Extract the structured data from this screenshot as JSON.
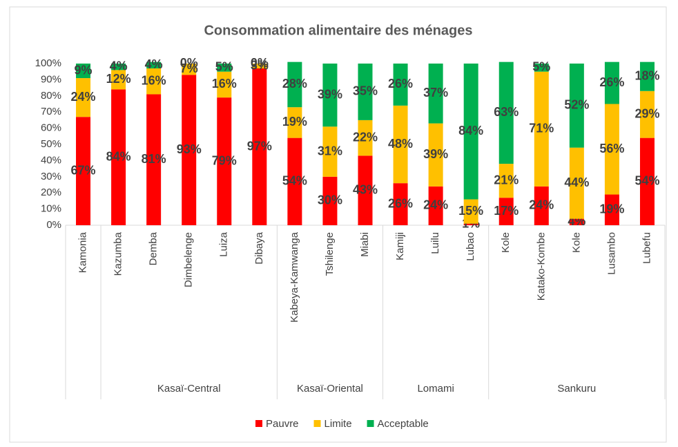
{
  "chart_data": {
    "type": "stacked_bar",
    "title": "Consommation alimentaire des ménages",
    "categories": [
      "Kamonia",
      "Kazumba",
      "Demba",
      "Dimbelenge",
      "Luiza",
      "Dibaya",
      "Kabeya-Kamwanga",
      "Tshilenge",
      "Miabi",
      "Kamiji",
      "Luilu",
      "Lubao",
      "Kole",
      "Katako-Kombe",
      "Kole",
      "Lusambo",
      "Lubefu"
    ],
    "category_groups": [
      null,
      "Kasaï-Central",
      "Kasaï-Central",
      "Kasaï-Central",
      "Kasaï-Central",
      "Kasaï-Central",
      "Kasaï-Oriental",
      "Kasaï-Oriental",
      "Kasaï-Oriental",
      "Lomami",
      "Lomami",
      "Lomami",
      "Sankuru",
      "Sankuru",
      "Sankuru",
      "Sankuru",
      "Sankuru"
    ],
    "series": [
      {
        "name": "Pauvre",
        "color": "#ff0000",
        "values": [
          67,
          84,
          81,
          93,
          79,
          97,
          54,
          30,
          43,
          26,
          24,
          1,
          17,
          24,
          4,
          19,
          54
        ],
        "value_labels": [
          "67%",
          "84%",
          "81%",
          "93%",
          "79%",
          "97%",
          "54%",
          "30%",
          "43%",
          "26%",
          "24%",
          "1%",
          "17%",
          "24%",
          "4%",
          "19%",
          "54%"
        ]
      },
      {
        "name": "Limite",
        "color": "#ffc000",
        "values": [
          24,
          12,
          16,
          7,
          16,
          3,
          19,
          31,
          22,
          48,
          39,
          15,
          21,
          71,
          44,
          56,
          29
        ],
        "value_labels": [
          "24%",
          "12%",
          "16%",
          "7%",
          "16%",
          "3%",
          "19%",
          "31%",
          "22%",
          "48%",
          "39%",
          "15%",
          "21%",
          "71%",
          "44%",
          "56%",
          "29%"
        ]
      },
      {
        "name": "Acceptable",
        "color": "#00b050",
        "values": [
          9,
          4,
          4,
          0,
          5,
          0,
          28,
          39,
          35,
          26,
          37,
          84,
          63,
          5,
          52,
          26,
          18
        ],
        "value_labels": [
          "9%",
          "4%",
          "4%",
          "0%",
          "5%",
          "0%",
          "28%",
          "39%",
          "35%",
          "26%",
          "37%",
          "84%",
          "63%",
          "5%",
          "52%",
          "26%",
          "18%"
        ]
      }
    ],
    "ylim": [
      0,
      100
    ],
    "yticks": [
      {
        "value": 0,
        "label": "0%"
      },
      {
        "value": 10,
        "label": "10%"
      },
      {
        "value": 20,
        "label": "20%"
      },
      {
        "value": 30,
        "label": "30%"
      },
      {
        "value": 40,
        "label": "40%"
      },
      {
        "value": 50,
        "label": "50%"
      },
      {
        "value": 60,
        "label": "60%"
      },
      {
        "value": 70,
        "label": "70%"
      },
      {
        "value": 80,
        "label": "80%"
      },
      {
        "value": 90,
        "label": "90%"
      },
      {
        "value": 100,
        "label": "100%"
      }
    ],
    "legend": "bottom"
  }
}
